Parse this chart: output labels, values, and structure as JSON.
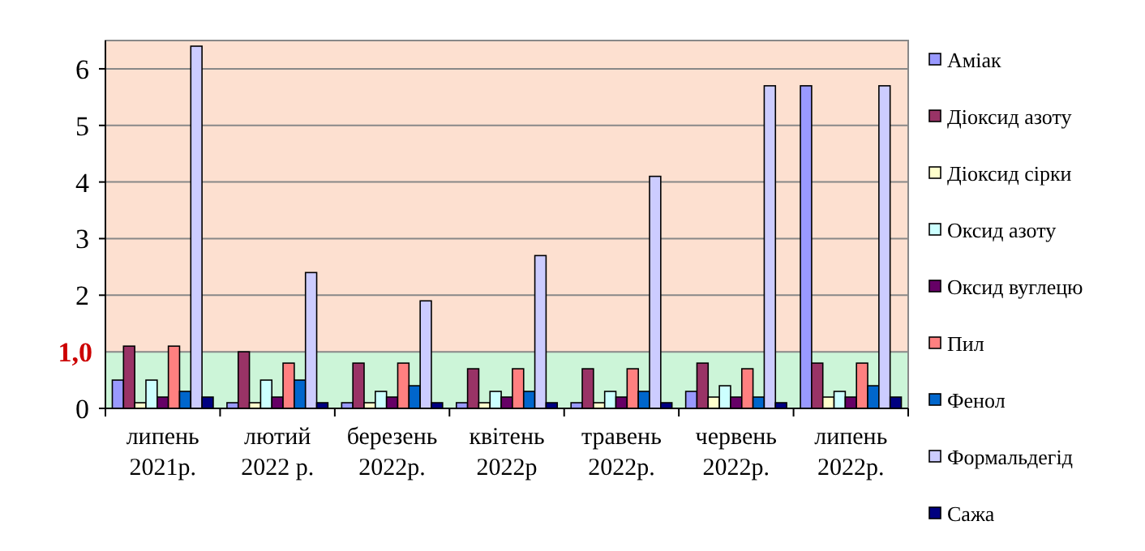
{
  "chart_data": {
    "type": "bar",
    "categories": [
      "липень\n2021р.",
      "лютий\n2022 р.",
      "березень\n2022р.",
      "квітень\n2022р",
      "травень\n2022р.",
      "червень\n2022р.",
      "липень\n2022р."
    ],
    "series": [
      {
        "name": "Аміак",
        "color": "#9999ff",
        "values": [
          0.5,
          0.1,
          0.1,
          0.1,
          0.1,
          0.3,
          5.7
        ]
      },
      {
        "name": "Діоксид азоту",
        "color": "#993366",
        "values": [
          1.1,
          1.0,
          0.8,
          0.7,
          0.7,
          0.8,
          0.8
        ]
      },
      {
        "name": "Діоксид сірки",
        "color": "#ffffcc",
        "values": [
          0.1,
          0.1,
          0.1,
          0.1,
          0.1,
          0.2,
          0.2
        ]
      },
      {
        "name": "Оксид азоту",
        "color": "#ccffff",
        "values": [
          0.5,
          0.5,
          0.3,
          0.3,
          0.3,
          0.4,
          0.3
        ]
      },
      {
        "name": "Оксид вуглецю",
        "color": "#660066",
        "values": [
          0.2,
          0.2,
          0.2,
          0.2,
          0.2,
          0.2,
          0.2
        ]
      },
      {
        "name": "Пил",
        "color": "#ff8080",
        "values": [
          1.1,
          0.8,
          0.8,
          0.7,
          0.7,
          0.7,
          0.8
        ]
      },
      {
        "name": "Фенол",
        "color": "#0066cc",
        "values": [
          0.3,
          0.5,
          0.4,
          0.3,
          0.3,
          0.2,
          0.4
        ]
      },
      {
        "name": "Формальдегід",
        "color": "#ccccff",
        "values": [
          6.4,
          2.4,
          1.9,
          2.7,
          4.1,
          5.7,
          5.7
        ]
      },
      {
        "name": "Сажа",
        "color": "#000080",
        "values": [
          0.2,
          0.1,
          0.1,
          0.1,
          0.1,
          0.1,
          0.2
        ]
      }
    ],
    "ylim": [
      0,
      6.5
    ],
    "yticks": [
      0,
      2,
      3,
      4,
      5,
      6
    ],
    "grid": "y",
    "legend": "right",
    "ref_lines": [
      {
        "axis": "y",
        "value": 1,
        "label": "1,0"
      }
    ],
    "bands": [
      {
        "axis": "y",
        "from": 0,
        "to": 1,
        "color": "#ccf5d8"
      },
      {
        "axis": "y",
        "from": 1,
        "to": 6.5,
        "color": "#fde0d0"
      }
    ]
  }
}
